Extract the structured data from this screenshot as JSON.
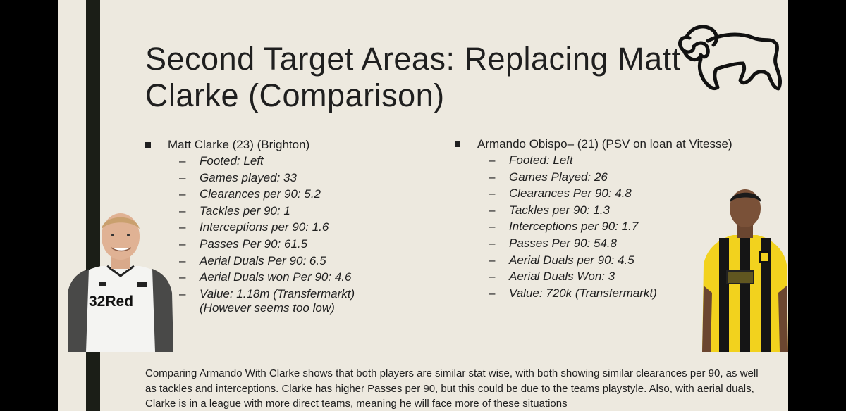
{
  "slide": {
    "title": "Second Target Areas: Replacing Matt Clarke (Comparison)",
    "left_player": {
      "header": "Matt Clarke (23) (Brighton)",
      "stats": [
        "Footed: Left",
        "Games played: 33",
        "Clearances per 90: 5.2",
        "Tackles per 90: 1",
        "Interceptions per 90: 1.6",
        "Passes Per 90: 61.5",
        "Aerial Duals Per 90: 6.5",
        "Aerial Duals won Per 90: 4.6",
        "Value: 1.18m (Transfermarkt)(However seems too low)"
      ],
      "shirt_sponsor": "32Red"
    },
    "right_player": {
      "header": "Armando Obispo– (21) (PSV on loan at Vitesse)",
      "stats": [
        "Footed: Left",
        "Games Played: 26",
        "Clearances Per 90: 4.8",
        "Tackles per 90: 1.3",
        "Interceptions per 90: 1.7",
        "Passes Per 90: 54.8",
        "Aerial Duals per 90: 4.5",
        "Aerial Duals Won: 3",
        "Value: 720k (Transfermarkt)"
      ]
    },
    "summary": "Comparing Armando With Clarke shows that both players are similar stat wise, with both showing  similar clearances per 90, as well as tackles and interceptions. Clarke has higher Passes per 90, but this could be due to the teams playstyle. Also, with aerial duals, Clarke is in a league with more direct teams, meaning he will face more of these situations",
    "colors": {
      "background": "#ede9df",
      "accent_bar": "#1b1e17",
      "text": "#1f1f1f",
      "vitesse_yellow": "#f2d21e"
    },
    "icons": {
      "logo": "derby-ram-logo-icon",
      "bullet": "square-bullet-icon"
    }
  }
}
